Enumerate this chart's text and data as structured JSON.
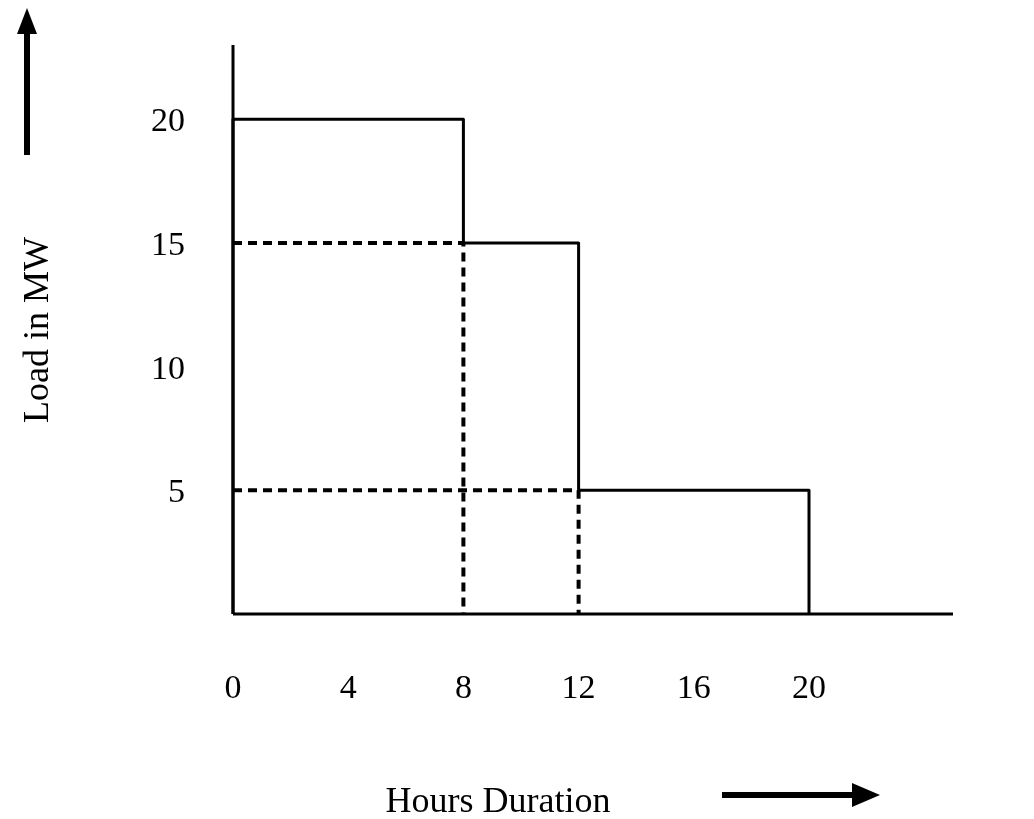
{
  "chart_data": {
    "type": "line",
    "xlabel": "Hours Duration",
    "ylabel": "Load in MW",
    "xlim": [
      0,
      25
    ],
    "ylim": [
      0,
      23
    ],
    "xticks": [
      0,
      4,
      8,
      12,
      16,
      20
    ],
    "yticks": [
      5,
      10,
      15,
      20
    ],
    "grid": false,
    "marker": "none",
    "series": [
      {
        "color": "#000000",
        "line_style": "solid",
        "x": [
          0,
          0,
          8,
          8,
          12,
          12,
          20,
          20
        ],
        "values": [
          0,
          20,
          20,
          15,
          15,
          5,
          5,
          0
        ]
      },
      {
        "color": "#000000",
        "line_style": "dashed",
        "x": [
          0,
          8,
          8
        ],
        "values": [
          15,
          15,
          0
        ]
      },
      {
        "color": "#000000",
        "line_style": "dashed",
        "x": [
          0,
          12,
          12
        ],
        "values": [
          5,
          5,
          0
        ]
      }
    ]
  }
}
